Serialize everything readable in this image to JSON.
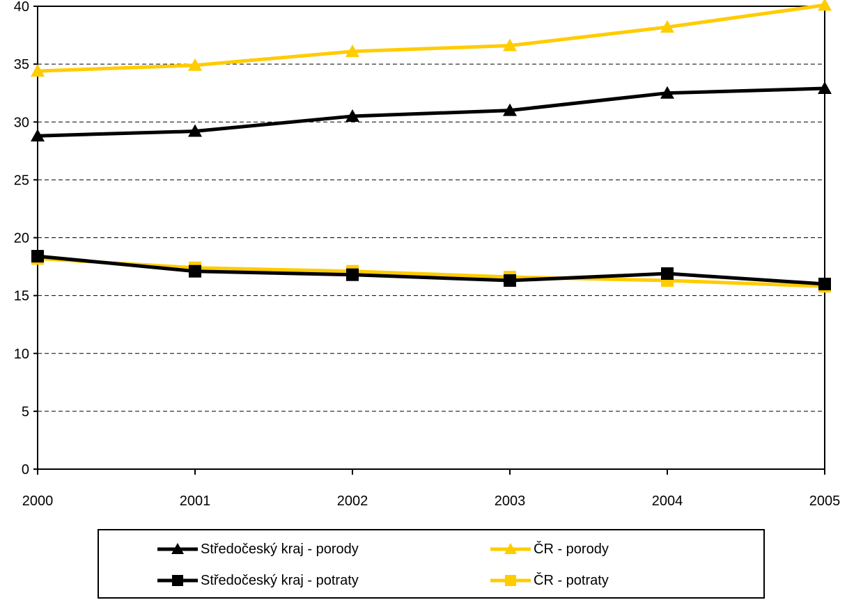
{
  "chart_data": {
    "type": "line",
    "title": "",
    "xlabel": "",
    "ylabel": "",
    "x": [
      "2000",
      "2001",
      "2002",
      "2003",
      "2004",
      "2005"
    ],
    "ylim": [
      0,
      40
    ],
    "yticks": [
      "0",
      "5",
      "10",
      "15",
      "20",
      "25",
      "30",
      "35",
      "40"
    ],
    "grid": true,
    "legend_position": "bottom",
    "series": [
      {
        "name": "Středočeský kraj - porody",
        "color": "#000000",
        "marker": "triangle",
        "values": [
          28.8,
          29.2,
          30.5,
          31.0,
          32.5,
          32.9
        ]
      },
      {
        "name": "ČR - porody",
        "color": "#FFCC00",
        "marker": "triangle",
        "values": [
          34.4,
          34.9,
          36.1,
          36.6,
          38.2,
          40.1
        ]
      },
      {
        "name": "Středočeský kraj - potraty",
        "color": "#000000",
        "marker": "square",
        "values": [
          18.4,
          17.1,
          16.8,
          16.3,
          16.9,
          16.0
        ]
      },
      {
        "name": "ČR - potraty",
        "color": "#FFCC00",
        "marker": "square",
        "values": [
          18.2,
          17.4,
          17.1,
          16.6,
          16.3,
          15.8
        ]
      }
    ]
  }
}
